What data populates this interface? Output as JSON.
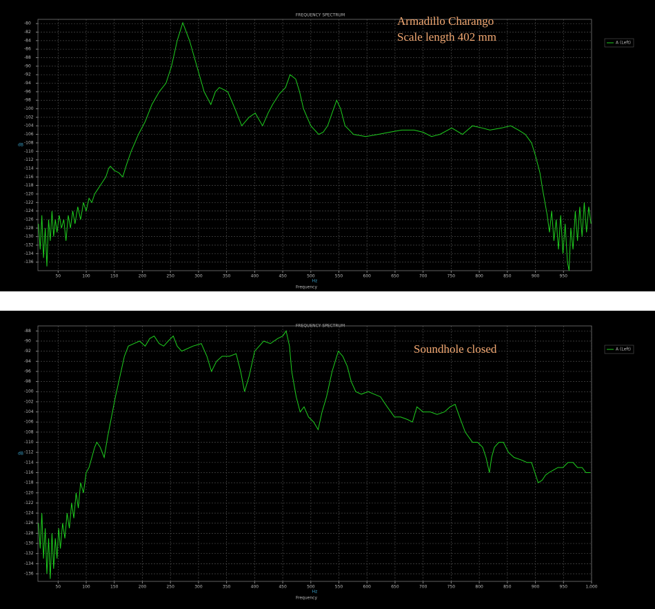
{
  "chart_data": [
    {
      "type": "line",
      "title": "FREQUENCY SPECTRUM",
      "annotations": [
        "Armadillo Charango",
        "Scale length 402 mm"
      ],
      "x_label": "Frequency",
      "x_unit": "Hz",
      "y_unit": "dB",
      "xlim": [
        14,
        1000
      ],
      "ylim": [
        -138,
        -79
      ],
      "xticks": [
        50,
        100,
        150,
        200,
        250,
        300,
        350,
        400,
        450,
        500,
        550,
        600,
        650,
        700,
        750,
        800,
        850,
        900,
        950
      ],
      "yticks": [
        -136,
        -134,
        -132,
        -130,
        -128,
        -126,
        -124,
        -122,
        -120,
        -118,
        -116,
        -114,
        -112,
        -110,
        -108,
        -106,
        -104,
        -102,
        -100,
        -98,
        -96,
        -94,
        -92,
        -90,
        -88,
        -86,
        -84,
        -82,
        -80
      ],
      "grid": true,
      "legend": "right",
      "x": [
        15,
        18,
        21,
        24,
        27,
        30,
        33,
        36,
        39,
        42,
        45,
        48,
        52,
        56,
        60,
        64,
        68,
        72,
        76,
        80,
        85,
        90,
        95,
        100,
        105,
        110,
        115,
        120,
        125,
        130,
        135,
        140,
        143,
        150,
        158,
        165,
        172,
        180,
        193,
        205,
        217,
        230,
        242,
        252,
        262,
        272,
        284,
        297,
        310,
        322,
        330,
        337,
        345,
        352,
        365,
        377,
        390,
        401,
        414,
        424,
        432,
        444,
        455,
        463,
        473,
        480,
        487,
        500,
        514,
        522,
        530,
        538,
        546,
        553,
        561,
        576,
        598,
        620,
        640,
        662,
        684,
        700,
        715,
        730,
        751,
        770,
        788,
        805,
        819,
        840,
        856,
        870,
        882,
        893,
        900,
        908,
        913,
        917,
        921,
        925,
        929,
        933,
        937,
        941,
        945,
        949,
        953,
        957,
        960,
        963,
        967,
        971,
        975,
        979,
        983,
        987,
        991,
        995,
        999
      ],
      "series": [
        {
          "name": "A (Left)",
          "color": "#1fd01f",
          "values": [
            -127,
            -133,
            -125,
            -135,
            -128,
            -137,
            -126,
            -131,
            -124,
            -130,
            -126,
            -129,
            -125,
            -128,
            -126,
            -131,
            -125,
            -128,
            -124,
            -127,
            -123,
            -126,
            -122,
            -124,
            -121,
            -122,
            -120,
            -119,
            -118,
            -117,
            -116,
            -114,
            -113.5,
            -114.5,
            -115,
            -116,
            -113,
            -110,
            -106,
            -103,
            -99,
            -96,
            -94,
            -90,
            -84,
            -79.8,
            -84,
            -90,
            -96,
            -99,
            -96,
            -95,
            -95.5,
            -96,
            -100,
            -104,
            -102,
            -101,
            -104,
            -101,
            -99,
            -96.5,
            -95,
            -92,
            -93,
            -96,
            -100,
            -104,
            -106,
            -105.5,
            -104,
            -101,
            -98,
            -100,
            -104,
            -106,
            -106.5,
            -106,
            -105.5,
            -105,
            -105,
            -105.5,
            -106.5,
            -106,
            -104.5,
            -106,
            -104,
            -104.5,
            -105,
            -104.5,
            -104,
            -105,
            -106,
            -108,
            -111,
            -115,
            -119,
            -122,
            -125,
            -129,
            -124,
            -131,
            -126,
            -133,
            -125,
            -134,
            -127,
            -136,
            -138,
            -128,
            -133,
            -124,
            -131,
            -123,
            -130,
            -122,
            -129,
            -123,
            -127
          ]
        }
      ]
    },
    {
      "type": "line",
      "title": "FREQUENCY SPECTRUM",
      "annotations": [
        "Soundhole closed"
      ],
      "x_label": "Frequency",
      "x_unit": "Hz",
      "y_unit": "dB",
      "xlim": [
        14,
        1000
      ],
      "ylim": [
        -137.5,
        -87
      ],
      "xticks": [
        50,
        100,
        150,
        200,
        250,
        300,
        350,
        400,
        450,
        500,
        550,
        600,
        650,
        700,
        750,
        800,
        850,
        900,
        950,
        {
          "value": 1000,
          "label": "1,000"
        }
      ],
      "yticks": [
        -136,
        -134,
        -132,
        -130,
        -128,
        -126,
        -124,
        -122,
        -120,
        -118,
        -116,
        -114,
        -112,
        -110,
        -108,
        -106,
        -104,
        -102,
        -100,
        -98,
        -96,
        -94,
        -92,
        -90,
        -88
      ],
      "grid": true,
      "legend": "right",
      "x": [
        15,
        18,
        21,
        24,
        27,
        30,
        33,
        36,
        39,
        42,
        45,
        48,
        51,
        54,
        58,
        62,
        66,
        70,
        74,
        78,
        82,
        86,
        90,
        95,
        100,
        105,
        110,
        115,
        119,
        125,
        132,
        138,
        145,
        152,
        160,
        168,
        175,
        185,
        195,
        205,
        213,
        221,
        230,
        238,
        246,
        255,
        262,
        270,
        280,
        290,
        305,
        315,
        323,
        332,
        342,
        355,
        367,
        375,
        382,
        390,
        400,
        416,
        428,
        441,
        450,
        456,
        462,
        466,
        474,
        481,
        488,
        496,
        505,
        513,
        520,
        528,
        538,
        549,
        557,
        565,
        572,
        580,
        590,
        602,
        613,
        624,
        636,
        649,
        660,
        672,
        681,
        689,
        700,
        713,
        725,
        738,
        748,
        757,
        765,
        775,
        788,
        797,
        806,
        812,
        818,
        822,
        827,
        835,
        843,
        852,
        862,
        875,
        885,
        893,
        899,
        905,
        912,
        918,
        924,
        932,
        940,
        949,
        958,
        967,
        975,
        983,
        990,
        998
      ],
      "series": [
        {
          "name": "A (Left)",
          "color": "#1fd01f",
          "values": [
            -126,
            -131,
            -124,
            -133,
            -127,
            -136,
            -129,
            -137,
            -128,
            -135,
            -129,
            -133,
            -127,
            -131,
            -126,
            -129,
            -124,
            -127,
            -122,
            -125,
            -120,
            -123,
            -118,
            -120,
            -116,
            -115,
            -113,
            -111,
            -110,
            -111,
            -113,
            -109,
            -105,
            -101,
            -97,
            -93,
            -91,
            -90.5,
            -90,
            -91,
            -89.5,
            -89,
            -90.5,
            -91,
            -90,
            -89,
            -91,
            -92,
            -91.5,
            -91,
            -90.5,
            -93,
            -96,
            -94,
            -93,
            -93,
            -92.5,
            -96,
            -100,
            -97,
            -92,
            -90,
            -90.5,
            -89.5,
            -89,
            -88,
            -91,
            -96,
            -101,
            -104,
            -103,
            -105,
            -106,
            -107.5,
            -104,
            -101,
            -96,
            -92,
            -93,
            -95,
            -98,
            -100,
            -100.5,
            -100,
            -100.5,
            -101,
            -103,
            -105,
            -105,
            -105.5,
            -106,
            -103,
            -104,
            -104,
            -104.5,
            -104,
            -103,
            -102.5,
            -105,
            -108,
            -110,
            -110,
            -111,
            -113,
            -116,
            -113,
            -111,
            -110,
            -110,
            -112,
            -113,
            -113.5,
            -114,
            -114,
            -116,
            -118,
            -117.5,
            -116.5,
            -116,
            -115.5,
            -115,
            -115,
            -114,
            -114,
            -115,
            -115,
            -116,
            -116
          ]
        }
      ]
    }
  ]
}
